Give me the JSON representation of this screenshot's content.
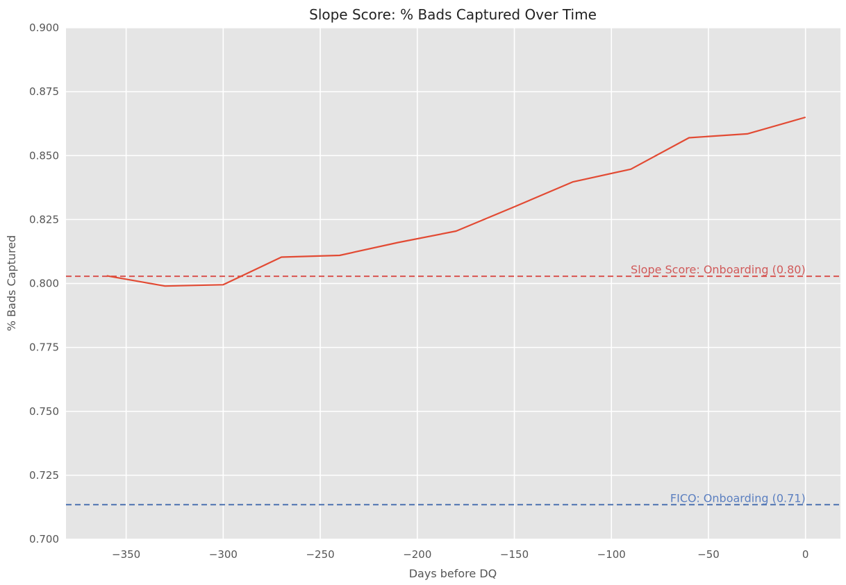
{
  "chart_data": {
    "type": "line",
    "title": "Slope Score: % Bads Captured Over Time",
    "xlabel": "Days before DQ",
    "ylabel": "% Bads Captured",
    "xlim": [
      -381,
      18
    ],
    "ylim": [
      0.7,
      0.9
    ],
    "xticks": [
      -350,
      -300,
      -250,
      -200,
      -150,
      -100,
      -50,
      0
    ],
    "xtick_labels": [
      "−350",
      "−300",
      "−250",
      "−200",
      "−150",
      "−100",
      "−50",
      "0"
    ],
    "yticks": [
      0.7,
      0.725,
      0.75,
      0.775,
      0.8,
      0.825,
      0.85,
      0.875,
      0.9
    ],
    "ytick_labels": [
      "0.700",
      "0.725",
      "0.750",
      "0.775",
      "0.800",
      "0.825",
      "0.850",
      "0.875",
      "0.900"
    ],
    "grid": true,
    "series": [
      {
        "color": "#e24a33",
        "x": [
          -360,
          -330,
          -300,
          -270,
          -240,
          -210,
          -180,
          -150,
          -120,
          -90,
          -60,
          -30,
          0
        ],
        "y": [
          0.803,
          0.799,
          0.7995,
          0.8103,
          0.811,
          0.816,
          0.8205,
          0.83,
          0.8397,
          0.8447,
          0.857,
          0.8585,
          0.865
        ]
      }
    ],
    "reference_lines": [
      {
        "y": 0.8028,
        "label": "Slope Score: Onboarding (0.80)",
        "color": "#d9534f",
        "label_color": "#d05a5a",
        "style": "dashed"
      },
      {
        "y": 0.7135,
        "label": "FICO: Onboarding (0.71)",
        "color": "#4c72b0",
        "label_color": "#5b7fc0",
        "style": "dashed"
      }
    ]
  }
}
